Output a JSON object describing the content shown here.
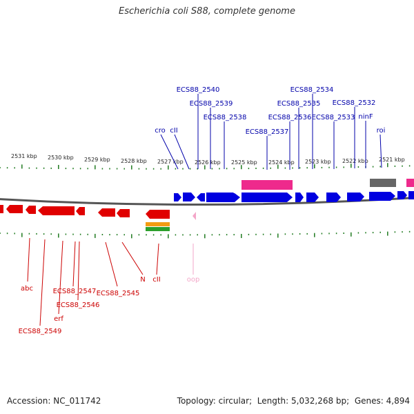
{
  "title": "Escherichia coli S88, complete genome",
  "footer": {
    "accession_label": "Accession:",
    "accession": "NC_011742",
    "topology_label": "Topology:",
    "topology": "circular",
    "length_label": "Length:",
    "length": "5,032,268 bp",
    "genes_label": "Genes:",
    "genes": "4,894"
  },
  "colors": {
    "forward_gene": "#0000e0",
    "reverse_gene": "#e00000",
    "label_forward": "#0000aa",
    "label_reverse": "#cc0000",
    "tick": "#1f7a1f",
    "magenta": "#ee2a8c",
    "grey_feature": "#666666",
    "orange_feature": "#f39c12",
    "green_feature": "#2ca02c",
    "pseudo_pink": "#f3a6c8"
  },
  "ruler_labels": [
    "2531 kbp",
    "2530 kbp",
    "2529 kbp",
    "2528 kbp",
    "2527 kbp",
    "2526 kbp",
    "2525 kbp",
    "2524 kbp",
    "2523 kbp",
    "2522 kbp",
    "2521 kbp"
  ],
  "forward_gene_labels": [
    "ECS88_2540",
    "ECS88_2539",
    "ECS88_2538",
    "ECS88_2537",
    "ECS88_2536",
    "ECS88_2535",
    "ECS88_2534",
    "ECS88_2533",
    "ECS88_2532",
    "cro",
    "cII",
    "ninF",
    "roi"
  ],
  "reverse_gene_labels": [
    "abc",
    "ECS88_2549",
    "erf",
    "ECS88_2547",
    "ECS88_2546",
    "ECS88_2545",
    "N",
    "cII",
    "oop"
  ]
}
